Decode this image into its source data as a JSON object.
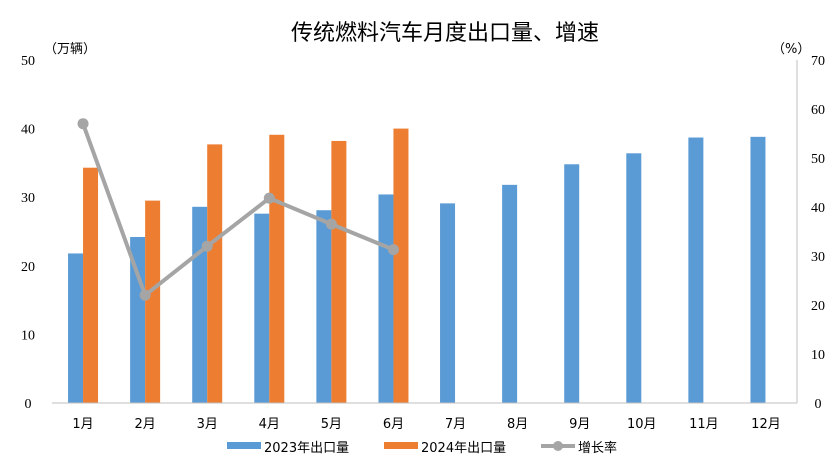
{
  "chart_data": {
    "type": "bar",
    "title": "传统燃料汽车月度出口量、增速",
    "y_left_label": "（万辆）",
    "y_right_label": "（%）",
    "y_left_lim": [
      0,
      50
    ],
    "y_left_ticks": [
      "0",
      "10",
      "20",
      "30",
      "40",
      "50"
    ],
    "y_right_lim": [
      0,
      70
    ],
    "y_right_ticks": [
      "0",
      "10",
      "20",
      "30",
      "40",
      "50",
      "60",
      "70"
    ],
    "categories": [
      "1月",
      "2月",
      "3月",
      "4月",
      "5月",
      "6月",
      "7月",
      "8月",
      "9月",
      "10月",
      "11月",
      "12月"
    ],
    "series": [
      {
        "name": "2023年出口量",
        "type": "bar",
        "axis": "left",
        "color": "#5B9BD5",
        "values": [
          21.8,
          24.2,
          28.6,
          27.6,
          28.1,
          30.4,
          29.1,
          31.8,
          34.8,
          36.4,
          38.7,
          38.8
        ]
      },
      {
        "name": "2024年出口量",
        "type": "bar",
        "axis": "left",
        "color": "#ED7D31",
        "values": [
          34.3,
          29.5,
          37.7,
          39.1,
          38.2,
          40.0,
          null,
          null,
          null,
          null,
          null,
          null
        ]
      },
      {
        "name": "增长率",
        "type": "line",
        "axis": "right",
        "color": "#A5A5A5",
        "values": [
          57.0,
          22.0,
          32.0,
          41.8,
          36.5,
          31.3,
          null,
          null,
          null,
          null,
          null,
          null
        ]
      }
    ],
    "grid": false,
    "legend_position": "bottom"
  }
}
